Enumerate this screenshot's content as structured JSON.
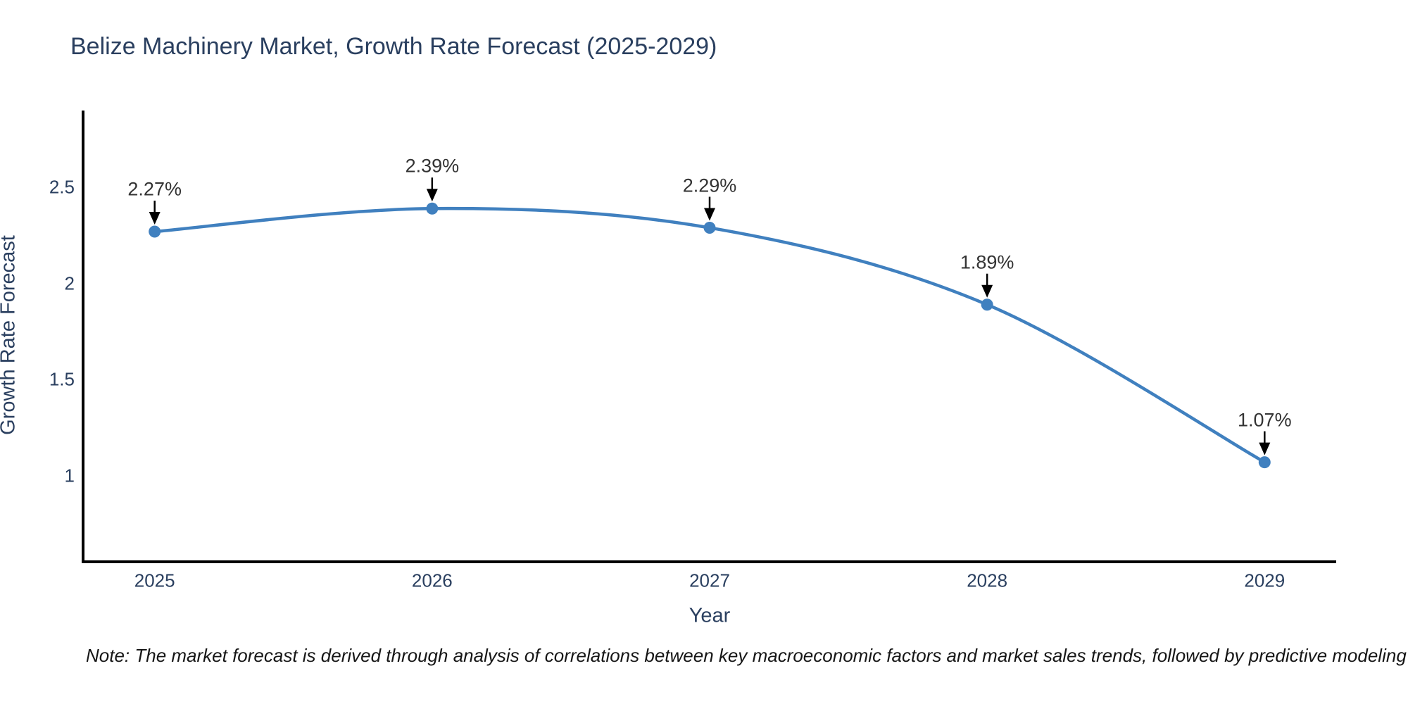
{
  "title": "Belize Machinery Market, Growth Rate Forecast (2025-2029)",
  "note": "Note: The market forecast is derived through analysis of correlations between key macroeconomic factors and market sales trends, followed by predictive modeling to project future sales",
  "chart_data": {
    "type": "line",
    "title": "Belize Machinery Market, Growth Rate Forecast (2025-2029)",
    "xlabel": "Year",
    "ylabel": "Growth Rate Forecast",
    "x": [
      2025,
      2026,
      2027,
      2028,
      2029
    ],
    "y": [
      2.27,
      2.39,
      2.29,
      1.89,
      1.07
    ],
    "point_labels": [
      "2.27%",
      "2.39%",
      "2.29%",
      "1.89%",
      "1.07%"
    ],
    "xtick_labels": [
      "2025",
      "2026",
      "2027",
      "2028",
      "2029"
    ],
    "ytick_values": [
      1,
      1.5,
      2,
      2.5
    ],
    "ytick_labels": [
      "1",
      "1.5",
      "2",
      "2.5"
    ],
    "xlim": [
      2024.742,
      2029.258
    ],
    "ylim": [
      0.552,
      2.9
    ],
    "grid": false,
    "legend": null,
    "curve": "spline"
  },
  "colors": {
    "series": "#4080bf",
    "axis_line": "#000000",
    "text": "#2a3f5f",
    "annotation_text": "#333333",
    "annotation_arrow": "#000000",
    "note_text": "#161616"
  }
}
